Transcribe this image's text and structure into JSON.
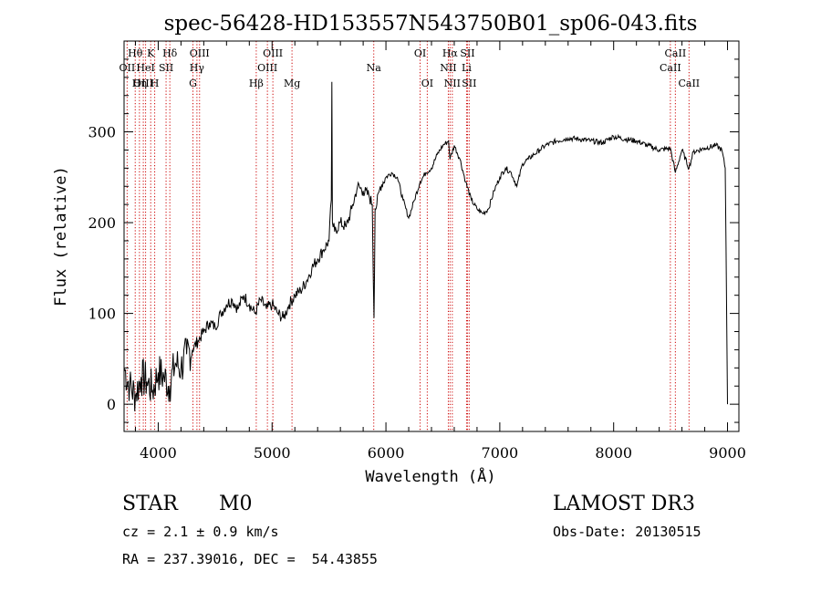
{
  "colors": {
    "ink": "#000000",
    "line_marker": "#cc0000",
    "background": "#ffffff"
  },
  "chart_data": {
    "type": "line",
    "title": "spec-56428-HD153557N543750B01_sp06-043.fits",
    "xlabel": "Wavelength (Å)",
    "ylabel": "Flux (relative)",
    "xlim": [
      3700,
      9100
    ],
    "ylim": [
      -30,
      400
    ],
    "xticks": [
      4000,
      5000,
      6000,
      7000,
      8000,
      9000
    ],
    "yticks": [
      0,
      100,
      200,
      300
    ],
    "series": [
      {
        "name": "flux",
        "x": [
          3700,
          3750,
          3800,
          3850,
          3900,
          3950,
          4000,
          4050,
          4100,
          4150,
          4200,
          4250,
          4300,
          4350,
          4400,
          4450,
          4500,
          4550,
          4600,
          4650,
          4700,
          4750,
          4800,
          4850,
          4900,
          4950,
          5000,
          5050,
          5100,
          5150,
          5200,
          5250,
          5300,
          5350,
          5400,
          5450,
          5500,
          5520,
          5525,
          5530,
          5550,
          5600,
          5650,
          5700,
          5750,
          5800,
          5850,
          5880,
          5895,
          5905,
          5920,
          5950,
          6000,
          6050,
          6100,
          6150,
          6200,
          6250,
          6300,
          6350,
          6400,
          6450,
          6500,
          6550,
          6563,
          6600,
          6650,
          6700,
          6750,
          6800,
          6850,
          6900,
          6950,
          7000,
          7050,
          7100,
          7150,
          7200,
          7250,
          7300,
          7350,
          7400,
          7500,
          7600,
          7700,
          7800,
          7900,
          8000,
          8100,
          8200,
          8300,
          8400,
          8498,
          8542,
          8600,
          8662,
          8700,
          8800,
          8900,
          8950,
          8980,
          9000
        ],
        "y": [
          40,
          20,
          10,
          30,
          25,
          15,
          35,
          30,
          20,
          45,
          40,
          55,
          60,
          70,
          80,
          90,
          85,
          100,
          110,
          115,
          105,
          120,
          110,
          100,
          115,
          105,
          110,
          100,
          95,
          110,
          120,
          125,
          135,
          150,
          160,
          170,
          180,
          225,
          355,
          200,
          190,
          200,
          195,
          215,
          240,
          235,
          230,
          220,
          95,
          215,
          220,
          240,
          250,
          255,
          250,
          225,
          205,
          225,
          245,
          255,
          260,
          275,
          285,
          290,
          270,
          285,
          270,
          245,
          225,
          215,
          210,
          215,
          235,
          250,
          260,
          255,
          240,
          265,
          270,
          275,
          280,
          285,
          290,
          293,
          292,
          290,
          288,
          295,
          292,
          290,
          285,
          280,
          282,
          255,
          280,
          260,
          278,
          282,
          285,
          280,
          260,
          0
        ]
      }
    ],
    "line_labels": [
      {
        "text": "Hθ",
        "x": 3798,
        "row": 1
      },
      {
        "text": "OII",
        "x": 3727,
        "row": 2
      },
      {
        "text": "OIII",
        "x": 3869,
        "row": 3
      },
      {
        "text": "K",
        "x": 3934,
        "row": 1
      },
      {
        "text": "HeI",
        "x": 3889,
        "row": 2
      },
      {
        "text": "Hη",
        "x": 3835,
        "row": 3
      },
      {
        "text": "Hδ",
        "x": 4102,
        "row": 1
      },
      {
        "text": "SII",
        "x": 4069,
        "row": 2
      },
      {
        "text": "H",
        "x": 3969,
        "row": 3
      },
      {
        "text": "OIII",
        "x": 4363,
        "row": 1
      },
      {
        "text": "Hγ",
        "x": 4340,
        "row": 2
      },
      {
        "text": "G",
        "x": 4305,
        "row": 3
      },
      {
        "text": "OIII",
        "x": 5007,
        "row": 1
      },
      {
        "text": "OIII",
        "x": 4959,
        "row": 2
      },
      {
        "text": "Hβ",
        "x": 4861,
        "row": 3
      },
      {
        "text": "Mg",
        "x": 5175,
        "row": 3
      },
      {
        "text": "Na",
        "x": 5893,
        "row": 2
      },
      {
        "text": "OI",
        "x": 6300,
        "row": 1
      },
      {
        "text": "OI",
        "x": 6363,
        "row": 3
      },
      {
        "text": "Hα",
        "x": 6563,
        "row": 1
      },
      {
        "text": "SII",
        "x": 6716,
        "row": 1
      },
      {
        "text": "NII",
        "x": 6548,
        "row": 2
      },
      {
        "text": "Li",
        "x": 6708,
        "row": 2
      },
      {
        "text": "NII",
        "x": 6583,
        "row": 3
      },
      {
        "text": "SII",
        "x": 6731,
        "row": 3
      },
      {
        "text": "CaII",
        "x": 8542,
        "row": 1
      },
      {
        "text": "CaII",
        "x": 8498,
        "row": 2
      },
      {
        "text": "CaII",
        "x": 8662,
        "row": 3
      }
    ]
  },
  "info": {
    "object_class": "STAR",
    "subclass": "M0",
    "redshift": "cz = 2.1 ± 0.9 km/s",
    "coords": "RA = 237.39016, DEC =  54.43855",
    "survey": "LAMOST DR3",
    "obs_date": "Obs-Date: 20130515"
  }
}
